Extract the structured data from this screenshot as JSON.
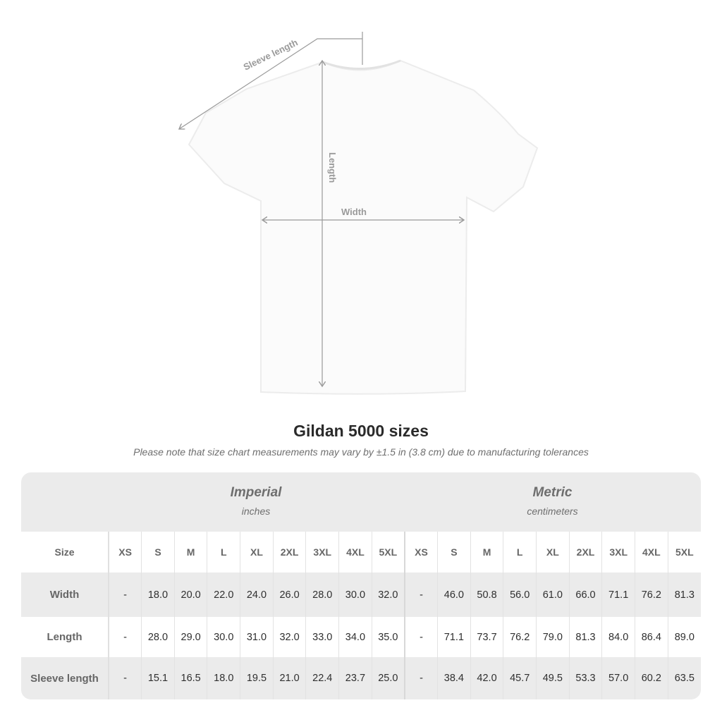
{
  "diagram": {
    "sleeve_label": "Sleeve length",
    "length_label": "Length",
    "width_label": "Width"
  },
  "title": "Gildan 5000 sizes",
  "note": "Please note that size chart measurements may vary by ±1.5 in (3.8 cm) due to manufacturing tolerances",
  "imperial": {
    "name": "Imperial",
    "unit": "inches"
  },
  "metric": {
    "name": "Metric",
    "unit": "centimeters"
  },
  "table": {
    "size_label": "Size",
    "sizes": [
      "XS",
      "S",
      "M",
      "L",
      "XL",
      "2XL",
      "3XL",
      "4XL",
      "5XL"
    ],
    "rows": [
      {
        "label": "Width",
        "imperial": [
          "-",
          "18.0",
          "20.0",
          "22.0",
          "24.0",
          "26.0",
          "28.0",
          "30.0",
          "32.0"
        ],
        "metric": [
          "-",
          "46.0",
          "50.8",
          "56.0",
          "61.0",
          "66.0",
          "71.1",
          "76.2",
          "81.3"
        ]
      },
      {
        "label": "Length",
        "imperial": [
          "-",
          "28.0",
          "29.0",
          "30.0",
          "31.0",
          "32.0",
          "33.0",
          "34.0",
          "35.0"
        ],
        "metric": [
          "-",
          "71.1",
          "73.7",
          "76.2",
          "79.0",
          "81.3",
          "84.0",
          "86.4",
          "89.0"
        ]
      },
      {
        "label": "Sleeve length",
        "imperial": [
          "-",
          "15.1",
          "16.5",
          "18.0",
          "19.5",
          "21.0",
          "22.4",
          "23.7",
          "25.0"
        ],
        "metric": [
          "-",
          "38.4",
          "42.0",
          "45.7",
          "49.5",
          "53.3",
          "57.0",
          "60.2",
          "63.5"
        ]
      }
    ]
  }
}
